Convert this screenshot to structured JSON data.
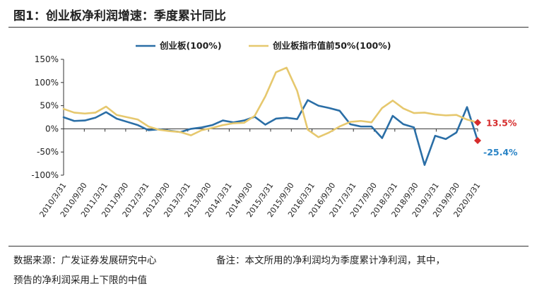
{
  "header": {
    "title": "图1：创业板净利润增速：季度累计同比"
  },
  "footer": {
    "source": "数据来源：广发证券发展研究中心",
    "note_line1": "备注：本文所用的净利润均为季度累计净利润，其中，",
    "note_line2": "预告的净利润采用上下限的中值"
  },
  "colors": {
    "series1": "#2A6EA6",
    "series2": "#E6C86E",
    "ann1": "#D62C2C",
    "ann2": "#2A84C6"
  },
  "chart_data": {
    "type": "line",
    "title": "",
    "xlabel": "",
    "ylabel": "",
    "ylim": [
      -100,
      150
    ],
    "yticks": [
      150,
      100,
      50,
      0,
      -50,
      -100
    ],
    "ytick_labels": [
      "150%",
      "100%",
      "50%",
      "0%",
      "-50%",
      "-100%"
    ],
    "x_tick_labels": [
      "2010/3/31",
      "2010/9/30",
      "2011/3/31",
      "2011/9/30",
      "2012/3/31",
      "2012/9/30",
      "2013/3/31",
      "2013/9/30",
      "2014/3/31",
      "2014/9/30",
      "2015/3/31",
      "2015/9/30",
      "2016/3/31",
      "2016/9/30",
      "2017/3/31",
      "2017/9/30",
      "2018/3/31",
      "2018/9/30",
      "2019/3/31",
      "2019/9/30",
      "2020/3/31"
    ],
    "legend_position": "top",
    "grid": false,
    "series": [
      {
        "name": "创业板(100%)",
        "values": [
          25,
          17,
          18,
          24,
          36,
          22,
          15,
          8,
          -3,
          -1,
          -4,
          -7,
          0,
          3,
          8,
          18,
          14,
          18,
          26,
          9,
          22,
          24,
          21,
          62,
          50,
          45,
          39,
          10,
          5,
          5,
          -20,
          28,
          10,
          3,
          -78,
          -15,
          -22,
          -8,
          47,
          -25.4
        ]
      },
      {
        "name": "创业板指市值前50%(100%)",
        "values": [
          43,
          35,
          33,
          35,
          48,
          30,
          25,
          20,
          5,
          -2,
          -5,
          -7,
          -14,
          -3,
          2,
          8,
          12,
          13,
          28,
          70,
          122,
          132,
          82,
          -2,
          -18,
          -8,
          5,
          15,
          17,
          14,
          45,
          61,
          44,
          34,
          35,
          31,
          29,
          30,
          20,
          13.5
        ]
      }
    ],
    "annotations": [
      {
        "label": "13.5%",
        "value": 13.5
      },
      {
        "label": "-25.4%",
        "value": -25.4
      }
    ]
  }
}
